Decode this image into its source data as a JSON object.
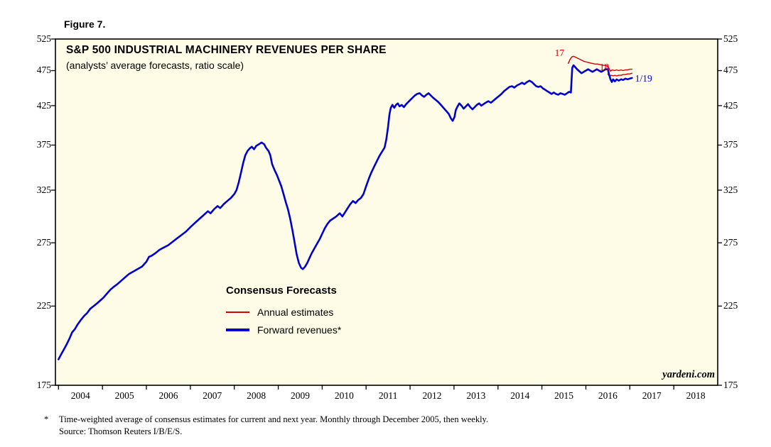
{
  "figure_label": "Figure 7.",
  "watermark": "yardeni.com",
  "footnote": {
    "marker": "*",
    "line1": "Time-weighted average of consensus estimates for current and next year. Monthly through December 2005, then weekly.",
    "line2": "Source: Thomson Reuters I/B/E/S."
  },
  "chart_data": {
    "type": "line",
    "title": "S&P 500 INDUSTRIAL MACHINERY REVENUES PER SHARE",
    "subtitle": "(analysts’ average forecasts, ratio scale)",
    "colors": {
      "background": "#FEFCE6",
      "blue": "#0000CC",
      "red": "#D40000",
      "axis": "#000000"
    },
    "y_axis": {
      "scale": "log",
      "min": 175,
      "max": 525,
      "ticks": [
        525,
        475,
        425,
        375,
        325,
        275,
        225,
        175
      ]
    },
    "x_axis": {
      "min": 2003.93,
      "max": 2019.0,
      "year_labels": [
        "2004",
        "2005",
        "2006",
        "2007",
        "2008",
        "2009",
        "2010",
        "2011",
        "2012",
        "2013",
        "2014",
        "2015",
        "2016",
        "2017",
        "2018"
      ],
      "boundary_ticks": [
        2004,
        2005,
        2006,
        2007,
        2008,
        2009,
        2010,
        2011,
        2012,
        2013,
        2014,
        2015,
        2016,
        2017,
        2018
      ]
    },
    "legend": {
      "title": "Consensus Forecasts",
      "items": [
        {
          "label": "Annual estimates",
          "color": "#D40000",
          "thick": false
        },
        {
          "label": "Forward revenues*",
          "color": "#0000CC",
          "thick": true
        }
      ]
    },
    "annotations": [
      {
        "text": "17",
        "color": "#D40000",
        "year": 2015.4,
        "value": 502,
        "anchor": "middle"
      },
      {
        "text": "18",
        "color": "#D40000",
        "year": 2016.42,
        "value": 480,
        "anchor": "middle"
      },
      {
        "text": "1/19",
        "color": "#0000CC",
        "year": 2017.12,
        "value": 463,
        "anchor": "start"
      }
    ],
    "series": [
      {
        "name": "Annual estimates 2017",
        "color": "#D40000",
        "width": 1.4,
        "points": [
          [
            2015.6,
            486
          ],
          [
            2015.64,
            492
          ],
          [
            2015.68,
            496
          ],
          [
            2015.72,
            497
          ],
          [
            2015.78,
            495
          ],
          [
            2015.84,
            493
          ],
          [
            2015.9,
            491
          ],
          [
            2015.96,
            489
          ],
          [
            2016.02,
            488
          ],
          [
            2016.08,
            487
          ],
          [
            2016.14,
            486
          ],
          [
            2016.2,
            485
          ],
          [
            2016.26,
            485
          ],
          [
            2016.32,
            484
          ],
          [
            2016.38,
            483
          ],
          [
            2016.44,
            483
          ],
          [
            2016.5,
            482
          ],
          [
            2016.53,
            478
          ],
          [
            2016.56,
            474
          ],
          [
            2016.6,
            476
          ],
          [
            2016.65,
            475
          ],
          [
            2016.7,
            476
          ],
          [
            2016.75,
            475
          ],
          [
            2016.8,
            476
          ],
          [
            2016.85,
            475
          ],
          [
            2016.9,
            476
          ],
          [
            2016.95,
            476
          ],
          [
            2017.0,
            477
          ],
          [
            2017.05,
            477
          ]
        ]
      },
      {
        "name": "Annual estimates 2018",
        "color": "#D40000",
        "width": 1.4,
        "points": [
          [
            2016.5,
            470
          ],
          [
            2016.54,
            466
          ],
          [
            2016.58,
            468
          ],
          [
            2016.62,
            467
          ],
          [
            2016.66,
            468
          ],
          [
            2016.7,
            467
          ],
          [
            2016.75,
            468
          ],
          [
            2016.8,
            468
          ],
          [
            2016.85,
            469
          ],
          [
            2016.9,
            469
          ],
          [
            2016.95,
            470
          ],
          [
            2017.0,
            470
          ],
          [
            2017.05,
            471
          ]
        ]
      },
      {
        "name": "Forward revenues",
        "color": "#0000CC",
        "width": 2.6,
        "points": [
          [
            2004.0,
            190
          ],
          [
            2004.06,
            193
          ],
          [
            2004.12,
            196
          ],
          [
            2004.18,
            199
          ],
          [
            2004.25,
            203
          ],
          [
            2004.31,
            207
          ],
          [
            2004.37,
            209
          ],
          [
            2004.43,
            212
          ],
          [
            2004.5,
            215
          ],
          [
            2004.58,
            218
          ],
          [
            2004.65,
            220
          ],
          [
            2004.72,
            223
          ],
          [
            2004.8,
            225
          ],
          [
            2004.88,
            227
          ],
          [
            2004.95,
            229
          ],
          [
            2005.02,
            231
          ],
          [
            2005.1,
            234
          ],
          [
            2005.18,
            237
          ],
          [
            2005.25,
            239
          ],
          [
            2005.33,
            241
          ],
          [
            2005.4,
            243
          ],
          [
            2005.5,
            246
          ],
          [
            2005.6,
            249
          ],
          [
            2005.7,
            251
          ],
          [
            2005.8,
            253
          ],
          [
            2005.9,
            255
          ],
          [
            2006.0,
            259
          ],
          [
            2006.06,
            263
          ],
          [
            2006.12,
            264
          ],
          [
            2006.2,
            266
          ],
          [
            2006.3,
            269
          ],
          [
            2006.4,
            271
          ],
          [
            2006.5,
            273
          ],
          [
            2006.6,
            276
          ],
          [
            2006.7,
            279
          ],
          [
            2006.8,
            282
          ],
          [
            2006.9,
            285
          ],
          [
            2007.0,
            289
          ],
          [
            2007.08,
            292
          ],
          [
            2007.16,
            295
          ],
          [
            2007.24,
            298
          ],
          [
            2007.32,
            301
          ],
          [
            2007.4,
            304
          ],
          [
            2007.46,
            302
          ],
          [
            2007.54,
            306
          ],
          [
            2007.62,
            309
          ],
          [
            2007.68,
            307
          ],
          [
            2007.76,
            311
          ],
          [
            2007.84,
            314
          ],
          [
            2007.92,
            317
          ],
          [
            2008.0,
            321
          ],
          [
            2008.05,
            325
          ],
          [
            2008.1,
            333
          ],
          [
            2008.15,
            343
          ],
          [
            2008.2,
            354
          ],
          [
            2008.25,
            363
          ],
          [
            2008.3,
            368
          ],
          [
            2008.35,
            371
          ],
          [
            2008.4,
            373
          ],
          [
            2008.45,
            370
          ],
          [
            2008.5,
            374
          ],
          [
            2008.56,
            376
          ],
          [
            2008.62,
            378
          ],
          [
            2008.68,
            376
          ],
          [
            2008.72,
            372
          ],
          [
            2008.78,
            368
          ],
          [
            2008.82,
            363
          ],
          [
            2008.86,
            353
          ],
          [
            2008.92,
            346
          ],
          [
            2008.97,
            341
          ],
          [
            2009.02,
            335
          ],
          [
            2009.07,
            329
          ],
          [
            2009.12,
            321
          ],
          [
            2009.17,
            313
          ],
          [
            2009.22,
            306
          ],
          [
            2009.27,
            297
          ],
          [
            2009.32,
            287
          ],
          [
            2009.37,
            276
          ],
          [
            2009.42,
            265
          ],
          [
            2009.47,
            258
          ],
          [
            2009.52,
            254
          ],
          [
            2009.56,
            253
          ],
          [
            2009.61,
            255
          ],
          [
            2009.66,
            258
          ],
          [
            2009.71,
            262
          ],
          [
            2009.76,
            266
          ],
          [
            2009.82,
            270
          ],
          [
            2009.88,
            274
          ],
          [
            2009.94,
            278
          ],
          [
            2010.0,
            283
          ],
          [
            2010.06,
            288
          ],
          [
            2010.12,
            292
          ],
          [
            2010.18,
            295
          ],
          [
            2010.25,
            297
          ],
          [
            2010.32,
            299
          ],
          [
            2010.4,
            302
          ],
          [
            2010.46,
            299
          ],
          [
            2010.52,
            303
          ],
          [
            2010.58,
            307
          ],
          [
            2010.64,
            311
          ],
          [
            2010.7,
            314
          ],
          [
            2010.76,
            312
          ],
          [
            2010.82,
            315
          ],
          [
            2010.88,
            317
          ],
          [
            2010.94,
            321
          ],
          [
            2011.0,
            329
          ],
          [
            2011.06,
            337
          ],
          [
            2011.12,
            344
          ],
          [
            2011.18,
            350
          ],
          [
            2011.24,
            356
          ],
          [
            2011.3,
            362
          ],
          [
            2011.36,
            367
          ],
          [
            2011.42,
            372
          ],
          [
            2011.46,
            382
          ],
          [
            2011.5,
            398
          ],
          [
            2011.53,
            413
          ],
          [
            2011.56,
            422
          ],
          [
            2011.6,
            426
          ],
          [
            2011.64,
            422
          ],
          [
            2011.68,
            426
          ],
          [
            2011.72,
            428
          ],
          [
            2011.76,
            424
          ],
          [
            2011.81,
            426
          ],
          [
            2011.86,
            423
          ],
          [
            2011.91,
            427
          ],
          [
            2011.96,
            430
          ],
          [
            2012.01,
            433
          ],
          [
            2012.06,
            436
          ],
          [
            2012.11,
            439
          ],
          [
            2012.16,
            441
          ],
          [
            2012.22,
            442
          ],
          [
            2012.27,
            439
          ],
          [
            2012.32,
            437
          ],
          [
            2012.37,
            440
          ],
          [
            2012.42,
            442
          ],
          [
            2012.47,
            439
          ],
          [
            2012.52,
            436
          ],
          [
            2012.58,
            433
          ],
          [
            2012.64,
            430
          ],
          [
            2012.7,
            426
          ],
          [
            2012.76,
            422
          ],
          [
            2012.82,
            418
          ],
          [
            2012.88,
            414
          ],
          [
            2012.93,
            408
          ],
          [
            2012.97,
            405
          ],
          [
            2013.01,
            410
          ],
          [
            2013.04,
            419
          ],
          [
            2013.08,
            424
          ],
          [
            2013.12,
            428
          ],
          [
            2013.17,
            425
          ],
          [
            2013.22,
            421
          ],
          [
            2013.27,
            424
          ],
          [
            2013.32,
            427
          ],
          [
            2013.37,
            423
          ],
          [
            2013.42,
            420
          ],
          [
            2013.47,
            423
          ],
          [
            2013.52,
            426
          ],
          [
            2013.57,
            428
          ],
          [
            2013.62,
            425
          ],
          [
            2013.67,
            427
          ],
          [
            2013.72,
            429
          ],
          [
            2013.78,
            431
          ],
          [
            2013.84,
            429
          ],
          [
            2013.9,
            432
          ],
          [
            2013.96,
            435
          ],
          [
            2014.02,
            438
          ],
          [
            2014.08,
            441
          ],
          [
            2014.14,
            445
          ],
          [
            2014.2,
            448
          ],
          [
            2014.26,
            451
          ],
          [
            2014.32,
            452
          ],
          [
            2014.37,
            450
          ],
          [
            2014.43,
            453
          ],
          [
            2014.49,
            455
          ],
          [
            2014.55,
            457
          ],
          [
            2014.6,
            455
          ],
          [
            2014.66,
            458
          ],
          [
            2014.72,
            460
          ],
          [
            2014.77,
            458
          ],
          [
            2014.82,
            455
          ],
          [
            2014.87,
            452
          ],
          [
            2014.92,
            451
          ],
          [
            2014.97,
            452
          ],
          [
            2015.02,
            449
          ],
          [
            2015.07,
            447
          ],
          [
            2015.12,
            445
          ],
          [
            2015.17,
            443
          ],
          [
            2015.22,
            441
          ],
          [
            2015.27,
            443
          ],
          [
            2015.32,
            441
          ],
          [
            2015.37,
            440
          ],
          [
            2015.42,
            442
          ],
          [
            2015.47,
            441
          ],
          [
            2015.52,
            440
          ],
          [
            2015.57,
            442
          ],
          [
            2015.62,
            444
          ],
          [
            2015.66,
            443
          ],
          [
            2015.69,
            479
          ],
          [
            2015.72,
            483
          ],
          [
            2015.76,
            480
          ],
          [
            2015.8,
            477
          ],
          [
            2015.85,
            474
          ],
          [
            2015.9,
            471
          ],
          [
            2015.95,
            473
          ],
          [
            2016.0,
            475
          ],
          [
            2016.05,
            477
          ],
          [
            2016.1,
            475
          ],
          [
            2016.15,
            473
          ],
          [
            2016.2,
            475
          ],
          [
            2016.25,
            477
          ],
          [
            2016.3,
            475
          ],
          [
            2016.35,
            473
          ],
          [
            2016.4,
            475
          ],
          [
            2016.45,
            477
          ],
          [
            2016.5,
            477
          ],
          [
            2016.53,
            469
          ],
          [
            2016.56,
            462
          ],
          [
            2016.59,
            458
          ],
          [
            2016.62,
            462
          ],
          [
            2016.66,
            459
          ],
          [
            2016.7,
            462
          ],
          [
            2016.75,
            460
          ],
          [
            2016.8,
            462
          ],
          [
            2016.85,
            461
          ],
          [
            2016.9,
            463
          ],
          [
            2016.95,
            462
          ],
          [
            2017.0,
            463
          ],
          [
            2017.05,
            464
          ]
        ]
      }
    ]
  }
}
